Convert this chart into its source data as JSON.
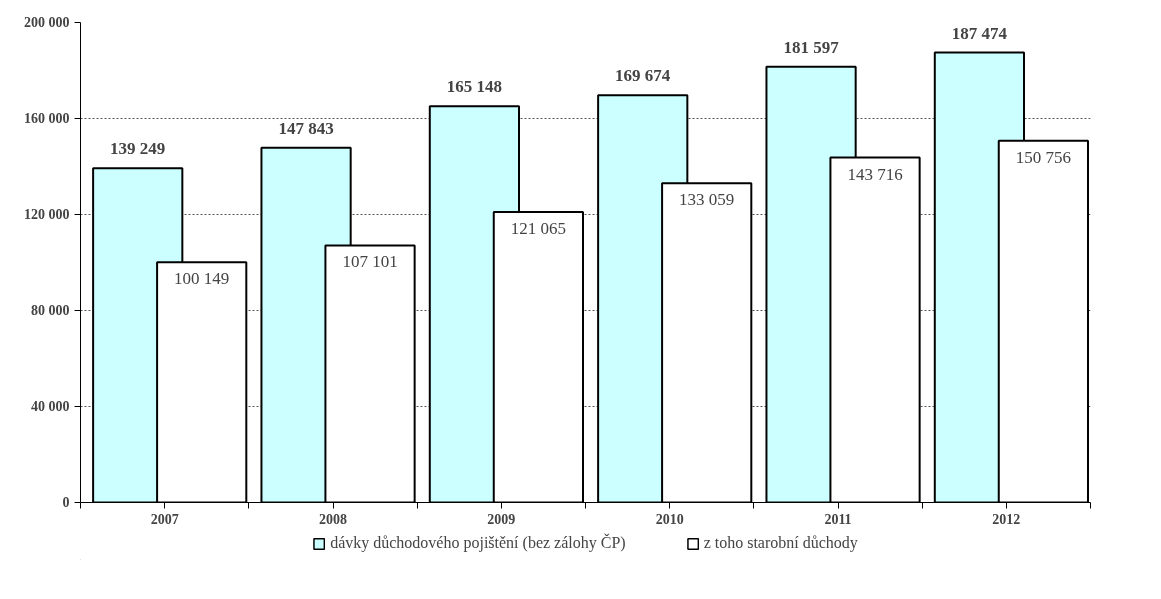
{
  "chart_data": {
    "type": "bar",
    "categories": [
      "2007",
      "2008",
      "2009",
      "2010",
      "2011",
      "2012"
    ],
    "series": [
      {
        "name": "dávky důchodového pojištění (bez zálohy ČP)",
        "color": "#ccffff",
        "values": [
          139249,
          147843,
          165148,
          169674,
          181597,
          187474
        ],
        "value_labels": [
          "139 249",
          "147 843",
          "165 148",
          "169 674",
          "181 597",
          "187 474"
        ]
      },
      {
        "name": "z toho starobní důchody",
        "color": "#ffffff",
        "values": [
          100149,
          107101,
          121065,
          133059,
          143716,
          150756
        ],
        "value_labels": [
          "100 149",
          "107 101",
          "121 065",
          "133 059",
          "143 716",
          "150 756"
        ]
      }
    ],
    "ylim": [
      0,
      200000
    ],
    "yticks": [
      {
        "value": 0,
        "label": "0"
      },
      {
        "value": 40000,
        "label": "40 000"
      },
      {
        "value": 80000,
        "label": "80 000"
      },
      {
        "value": 120000,
        "label": "120 000"
      },
      {
        "value": 160000,
        "label": "160 000"
      },
      {
        "value": 200000,
        "label": "200 000"
      }
    ],
    "grid": "y",
    "legend": "bottom"
  }
}
